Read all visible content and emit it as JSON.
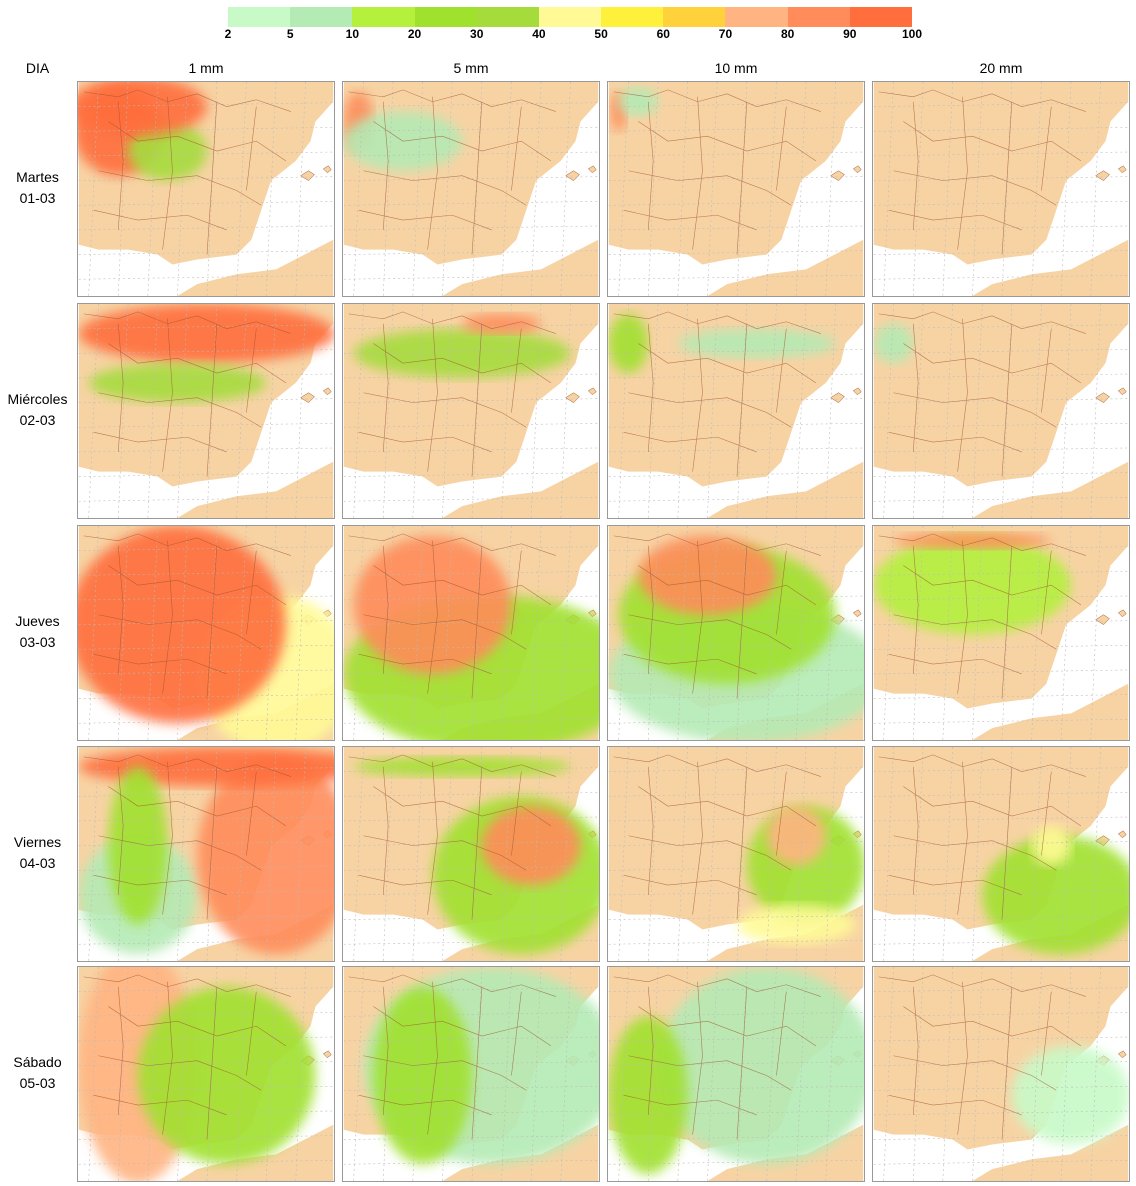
{
  "legend": {
    "labels": [
      2,
      5,
      10,
      20,
      30,
      40,
      50,
      60,
      70,
      80,
      90,
      100
    ],
    "colors": [
      "#c8fac8",
      "#b4eab4",
      "#b4f03c",
      "#a0e12d",
      "#a5dc3c",
      "#fffa96",
      "#fff03c",
      "#ffd23c",
      "#ffb482",
      "#ff8c5a",
      "#ff6e3c"
    ]
  },
  "corner_label": "DIA",
  "columns": [
    "1 mm",
    "5 mm",
    "10 mm",
    "20 mm"
  ],
  "rows": [
    {
      "day": "Martes",
      "date": "01-03"
    },
    {
      "day": "Miércoles",
      "date": "02-03"
    },
    {
      "day": "Jueves",
      "date": "03-03"
    },
    {
      "day": "Viernes",
      "date": "04-03"
    },
    {
      "day": "Sábado",
      "date": "05-03"
    }
  ]
}
